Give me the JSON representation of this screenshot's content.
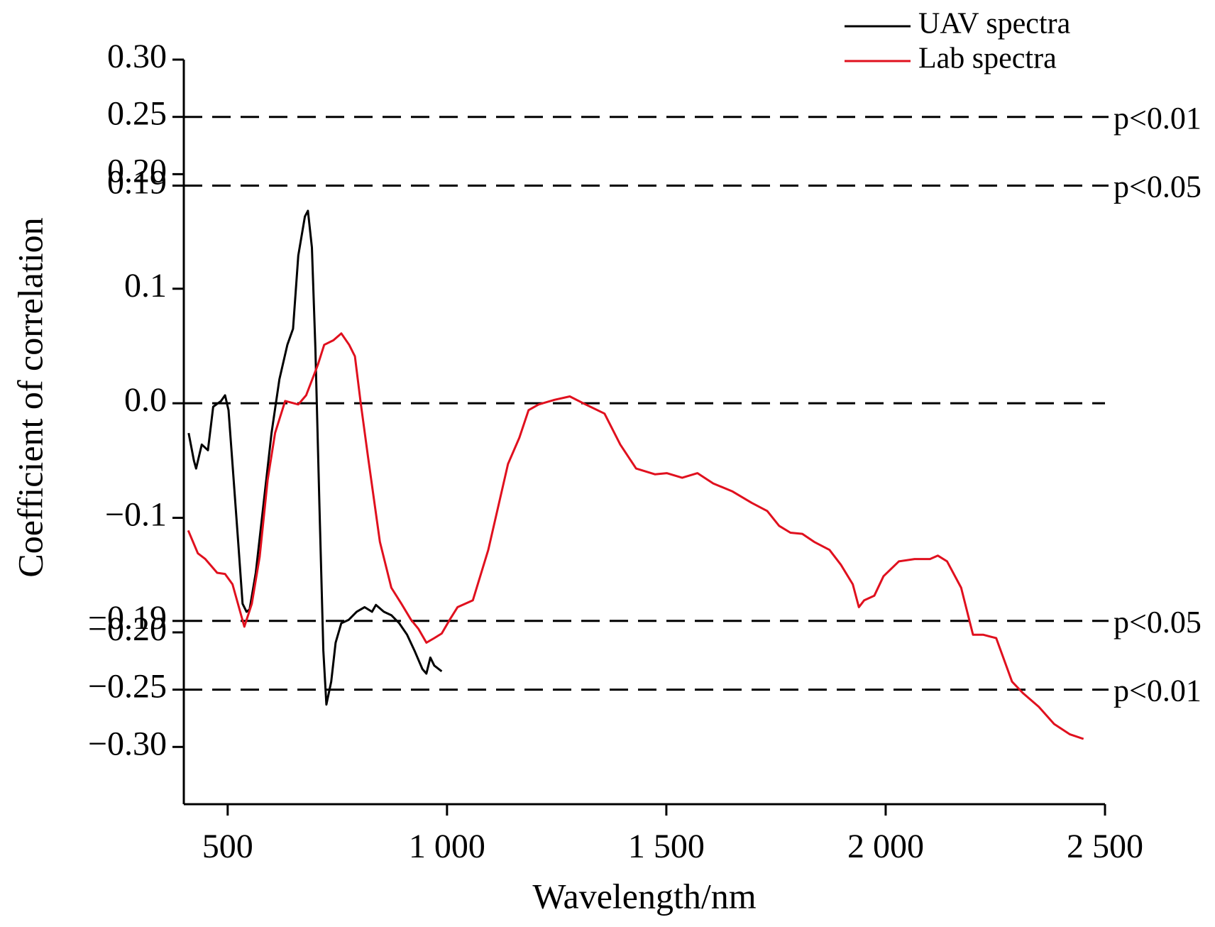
{
  "chart_data": {
    "type": "line",
    "xlabel": "Wavelength/nm",
    "ylabel": "Coefficient of correlation",
    "xlim": [
      400,
      2500
    ],
    "ylim": [
      -0.35,
      0.3
    ],
    "xticks": [
      {
        "value": 500,
        "label": "500"
      },
      {
        "value": 1000,
        "label": "1 000"
      },
      {
        "value": 1500,
        "label": "1 500"
      },
      {
        "value": 2000,
        "label": "2 000"
      },
      {
        "value": 2500,
        "label": "2 500"
      }
    ],
    "yticks": [
      {
        "value": 0.3,
        "label": "0.30"
      },
      0.25,
      {
        "value": 0.2,
        "label": "0.20"
      },
      0.19,
      0.1,
      {
        "value": 0.0,
        "label": "0.0"
      },
      {
        "value": -0.1,
        "label": "−0.1"
      },
      {
        "value": -0.19,
        "label": "−0.19"
      },
      {
        "value": -0.2,
        "label": "−0.20"
      },
      {
        "value": -0.25,
        "label": "−0.25"
      },
      {
        "value": -0.3,
        "label": "−0.30"
      }
    ],
    "reference_lines": [
      {
        "value": 0.25,
        "label": "p<0.01"
      },
      {
        "value": 0.19,
        "label": "p<0.05"
      },
      {
        "value": 0.0
      },
      {
        "value": -0.19,
        "label": "p<0.05"
      },
      {
        "value": -0.25,
        "label": "p<0.01"
      }
    ],
    "legend": "top-right",
    "series": [
      {
        "name": "UAV spectra",
        "color": "#000000",
        "x": [
          411,
          423,
          428,
          441,
          455,
          467,
          485,
          494,
          502,
          511,
          524,
          534,
          543,
          550,
          564,
          582,
          600,
          618,
          636,
          649,
          661,
          676,
          683,
          692,
          700,
          709,
          718,
          725,
          736,
          746,
          759,
          776,
          794,
          812,
          829,
          838,
          856,
          873,
          891,
          909,
          926,
          944,
          953,
          962,
          971,
          988
        ],
        "values": [
          -0.026,
          -0.05,
          -0.057,
          -0.036,
          -0.041,
          -0.003,
          0.002,
          0.007,
          -0.006,
          -0.053,
          -0.121,
          -0.175,
          -0.182,
          -0.18,
          -0.148,
          -0.087,
          -0.026,
          0.021,
          0.051,
          0.065,
          0.129,
          0.163,
          0.168,
          0.136,
          0.048,
          -0.087,
          -0.216,
          -0.263,
          -0.243,
          -0.209,
          -0.192,
          -0.189,
          -0.182,
          -0.178,
          -0.182,
          -0.176,
          -0.182,
          -0.185,
          -0.192,
          -0.202,
          -0.216,
          -0.232,
          -0.236,
          -0.222,
          -0.229,
          -0.234
        ]
      },
      {
        "name": "Lab spectra",
        "color": "#e0101e",
        "x": [
          410,
          432,
          449,
          476,
          494,
          511,
          538,
          555,
          573,
          591,
          608,
          631,
          661,
          679,
          706,
          720,
          741,
          759,
          777,
          790,
          803,
          820,
          847,
          873,
          896,
          918,
          935,
          953,
          971,
          988,
          1006,
          1024,
          1059,
          1094,
          1139,
          1165,
          1186,
          1209,
          1245,
          1280,
          1316,
          1359,
          1395,
          1431,
          1474,
          1501,
          1536,
          1571,
          1607,
          1651,
          1695,
          1730,
          1757,
          1783,
          1810,
          1837,
          1872,
          1898,
          1925,
          1939,
          1951,
          1974,
          1995,
          2030,
          2066,
          2101,
          2119,
          2140,
          2172,
          2199,
          2222,
          2252,
          2288,
          2313,
          2349,
          2384,
          2420,
          2451
        ],
        "values": [
          -0.111,
          -0.131,
          -0.136,
          -0.148,
          -0.149,
          -0.158,
          -0.195,
          -0.175,
          -0.134,
          -0.067,
          -0.026,
          0.002,
          -0.001,
          0.007,
          0.034,
          0.051,
          0.055,
          0.061,
          0.051,
          0.041,
          0.001,
          -0.047,
          -0.121,
          -0.161,
          -0.175,
          -0.189,
          -0.197,
          -0.209,
          -0.205,
          -0.201,
          -0.189,
          -0.178,
          -0.172,
          -0.128,
          -0.053,
          -0.03,
          -0.006,
          -0.001,
          0.003,
          0.006,
          -0.001,
          -0.009,
          -0.036,
          -0.057,
          -0.062,
          -0.061,
          -0.065,
          -0.061,
          -0.07,
          -0.077,
          -0.087,
          -0.094,
          -0.107,
          -0.113,
          -0.114,
          -0.121,
          -0.128,
          -0.141,
          -0.158,
          -0.178,
          -0.172,
          -0.168,
          -0.151,
          -0.138,
          -0.136,
          -0.136,
          -0.133,
          -0.138,
          -0.161,
          -0.202,
          -0.202,
          -0.205,
          -0.243,
          -0.253,
          -0.265,
          -0.28,
          -0.289,
          -0.293
        ]
      }
    ]
  }
}
